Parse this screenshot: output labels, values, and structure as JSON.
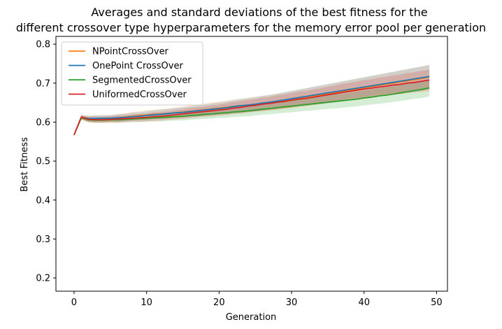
{
  "chart_data": {
    "type": "line",
    "title_line1": "Averages and standard deviations of the best fitness for the",
    "title_line2": "different crossover type hyperparameters for the memory error pool per generation",
    "xlabel": "Generation",
    "ylabel": "Best Fitness",
    "xlim": [
      -2.5,
      51.5
    ],
    "ylim": [
      0.166,
      0.82
    ],
    "xticks": [
      0,
      10,
      20,
      30,
      40,
      50
    ],
    "yticks": [
      0.2,
      0.3,
      0.4,
      0.5,
      0.6,
      0.7,
      0.8
    ],
    "legend_position": "upper-left",
    "x": [
      0,
      1,
      2,
      3,
      4,
      5,
      6,
      7,
      8,
      9,
      10,
      11,
      12,
      13,
      14,
      15,
      16,
      17,
      18,
      19,
      20,
      21,
      22,
      23,
      24,
      25,
      26,
      27,
      28,
      29,
      30,
      31,
      32,
      33,
      34,
      35,
      36,
      37,
      38,
      39,
      40,
      41,
      42,
      43,
      44,
      45,
      46,
      47,
      48,
      49
    ],
    "series": [
      {
        "name": "NPointCrossOver",
        "color": "#ff7f0e",
        "values": [
          0.567,
          0.613,
          0.608,
          0.608,
          0.609,
          0.609,
          0.61,
          0.613,
          0.615,
          0.617,
          0.618,
          0.62,
          0.621,
          0.622,
          0.624,
          0.626,
          0.628,
          0.63,
          0.632,
          0.634,
          0.636,
          0.638,
          0.64,
          0.642,
          0.644,
          0.646,
          0.648,
          0.65,
          0.652,
          0.655,
          0.658,
          0.661,
          0.664,
          0.667,
          0.67,
          0.673,
          0.676,
          0.679,
          0.682,
          0.685,
          0.688,
          0.691,
          0.694,
          0.697,
          0.7,
          0.703,
          0.706,
          0.709,
          0.712,
          0.716
        ],
        "std": [
          0.002,
          0.006,
          0.008,
          0.009,
          0.009,
          0.009,
          0.01,
          0.01,
          0.011,
          0.011,
          0.012,
          0.012,
          0.013,
          0.013,
          0.014,
          0.014,
          0.015,
          0.015,
          0.016,
          0.016,
          0.017,
          0.017,
          0.018,
          0.018,
          0.019,
          0.019,
          0.02,
          0.02,
          0.021,
          0.021,
          0.022,
          0.022,
          0.023,
          0.023,
          0.024,
          0.024,
          0.025,
          0.025,
          0.026,
          0.026,
          0.027,
          0.027,
          0.028,
          0.028,
          0.029,
          0.029,
          0.03,
          0.03,
          0.031,
          0.031
        ]
      },
      {
        "name": "OnePoint CrossOver",
        "color": "#1f77b4",
        "values": [
          0.567,
          0.612,
          0.609,
          0.609,
          0.61,
          0.61,
          0.611,
          0.612,
          0.614,
          0.615,
          0.617,
          0.619,
          0.62,
          0.622,
          0.624,
          0.625,
          0.627,
          0.629,
          0.631,
          0.633,
          0.635,
          0.637,
          0.64,
          0.642,
          0.644,
          0.646,
          0.649,
          0.651,
          0.654,
          0.657,
          0.66,
          0.663,
          0.666,
          0.669,
          0.672,
          0.675,
          0.678,
          0.681,
          0.684,
          0.687,
          0.69,
          0.693,
          0.696,
          0.699,
          0.702,
          0.705,
          0.708,
          0.711,
          0.714,
          0.717
        ],
        "std": [
          0.002,
          0.005,
          0.007,
          0.008,
          0.008,
          0.008,
          0.009,
          0.009,
          0.01,
          0.01,
          0.011,
          0.011,
          0.012,
          0.012,
          0.012,
          0.013,
          0.013,
          0.014,
          0.014,
          0.015,
          0.015,
          0.016,
          0.016,
          0.017,
          0.017,
          0.018,
          0.018,
          0.019,
          0.019,
          0.02,
          0.02,
          0.021,
          0.021,
          0.022,
          0.022,
          0.023,
          0.023,
          0.024,
          0.024,
          0.025,
          0.025,
          0.026,
          0.026,
          0.027,
          0.027,
          0.028,
          0.028,
          0.029,
          0.029,
          0.03
        ]
      },
      {
        "name": "SegmentedCrossOver",
        "color": "#2ca02c",
        "values": [
          0.567,
          0.611,
          0.606,
          0.605,
          0.605,
          0.606,
          0.606,
          0.607,
          0.608,
          0.609,
          0.61,
          0.611,
          0.612,
          0.613,
          0.614,
          0.615,
          0.617,
          0.618,
          0.62,
          0.621,
          0.623,
          0.624,
          0.626,
          0.627,
          0.629,
          0.631,
          0.633,
          0.635,
          0.637,
          0.639,
          0.641,
          0.643,
          0.645,
          0.647,
          0.649,
          0.651,
          0.653,
          0.655,
          0.657,
          0.659,
          0.662,
          0.664,
          0.667,
          0.669,
          0.672,
          0.675,
          0.678,
          0.681,
          0.684,
          0.688
        ],
        "std": [
          0.002,
          0.005,
          0.006,
          0.007,
          0.007,
          0.007,
          0.008,
          0.008,
          0.008,
          0.009,
          0.009,
          0.009,
          0.01,
          0.01,
          0.01,
          0.011,
          0.011,
          0.011,
          0.012,
          0.012,
          0.012,
          0.013,
          0.013,
          0.013,
          0.014,
          0.014,
          0.014,
          0.015,
          0.015,
          0.015,
          0.016,
          0.016,
          0.016,
          0.017,
          0.017,
          0.017,
          0.018,
          0.018,
          0.018,
          0.019,
          0.019,
          0.019,
          0.02,
          0.02,
          0.02,
          0.021,
          0.021,
          0.021,
          0.022,
          0.022
        ]
      },
      {
        "name": "UniformedCrossOver",
        "color": "#d62728",
        "values": [
          0.567,
          0.613,
          0.607,
          0.606,
          0.606,
          0.607,
          0.608,
          0.609,
          0.61,
          0.611,
          0.612,
          0.614,
          0.615,
          0.617,
          0.619,
          0.621,
          0.623,
          0.625,
          0.627,
          0.629,
          0.631,
          0.633,
          0.636,
          0.638,
          0.641,
          0.643,
          0.646,
          0.648,
          0.651,
          0.653,
          0.656,
          0.659,
          0.661,
          0.664,
          0.667,
          0.67,
          0.673,
          0.676,
          0.679,
          0.682,
          0.685,
          0.687,
          0.69,
          0.692,
          0.695,
          0.697,
          0.7,
          0.702,
          0.705,
          0.708
        ],
        "std": [
          0.002,
          0.005,
          0.007,
          0.008,
          0.008,
          0.008,
          0.009,
          0.009,
          0.009,
          0.01,
          0.01,
          0.011,
          0.011,
          0.011,
          0.012,
          0.012,
          0.013,
          0.013,
          0.013,
          0.014,
          0.014,
          0.015,
          0.015,
          0.016,
          0.016,
          0.016,
          0.017,
          0.017,
          0.018,
          0.018,
          0.019,
          0.019,
          0.019,
          0.02,
          0.02,
          0.021,
          0.021,
          0.022,
          0.022,
          0.022,
          0.023,
          0.023,
          0.024,
          0.024,
          0.025,
          0.025,
          0.026,
          0.026,
          0.027,
          0.027
        ]
      }
    ]
  }
}
